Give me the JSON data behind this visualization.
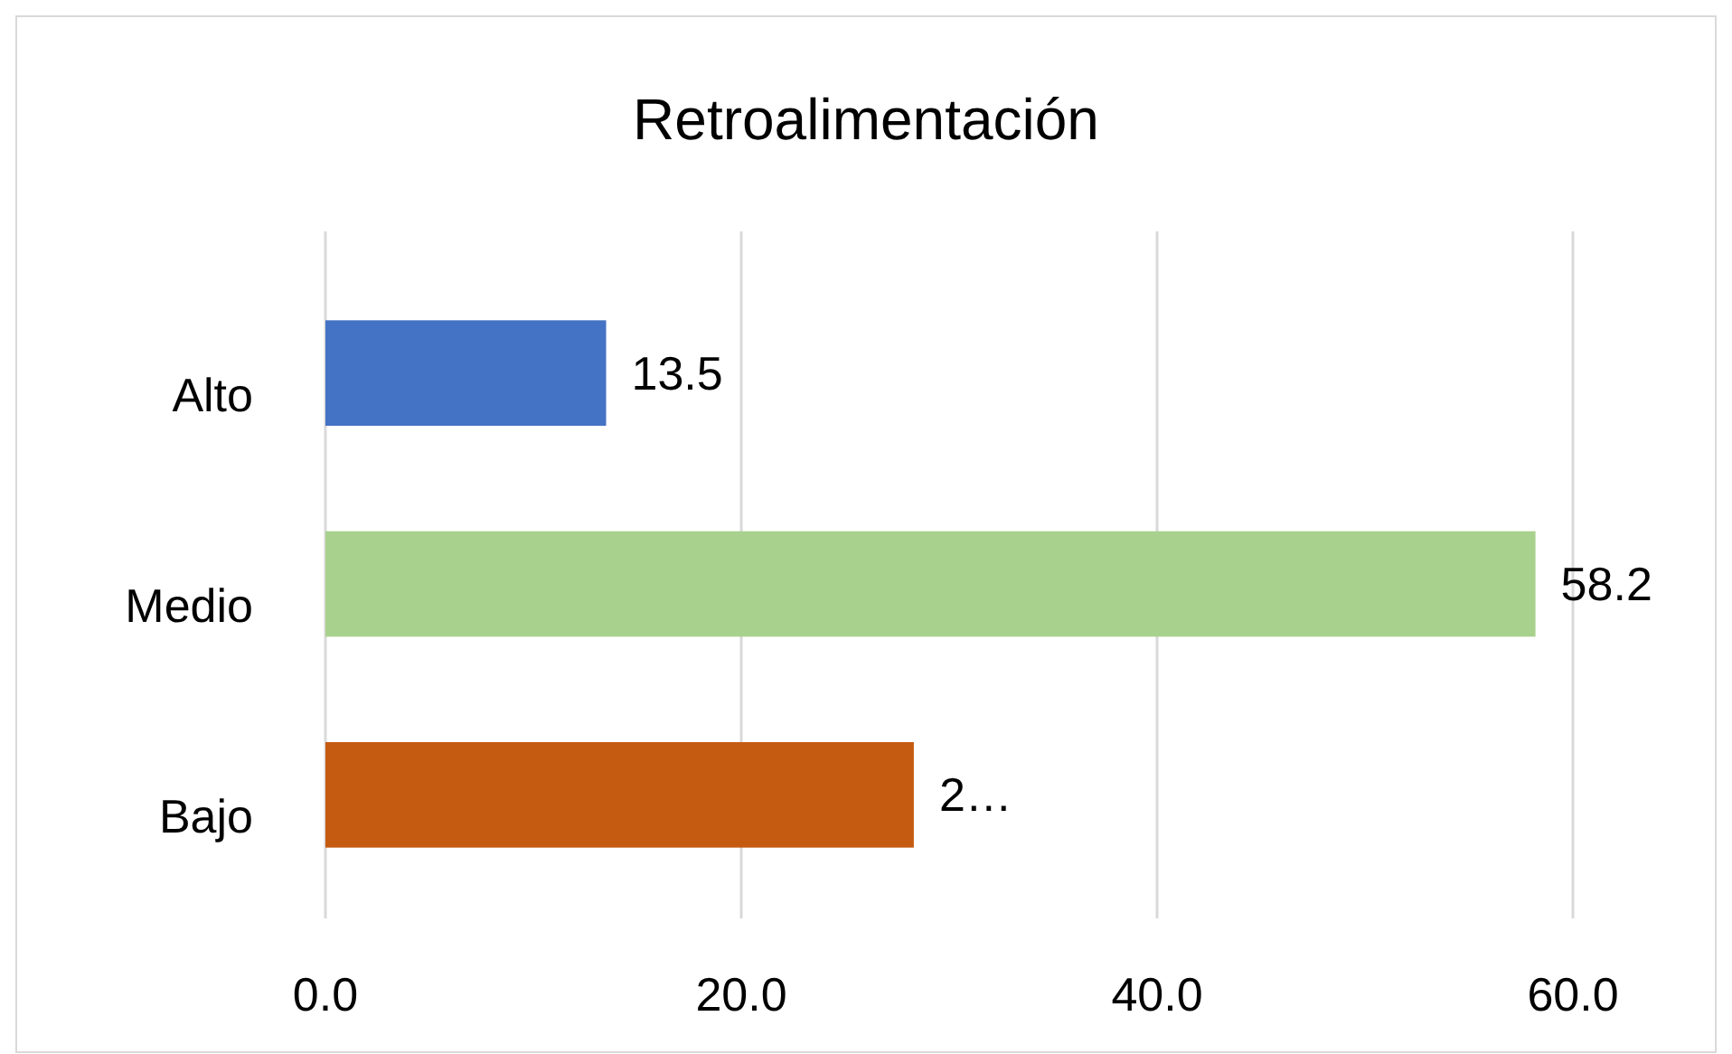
{
  "chart_data": {
    "type": "bar",
    "orientation": "horizontal",
    "title": "Retroalimentación",
    "categories": [
      "Alto",
      "Medio",
      "Bajo"
    ],
    "values": [
      13.5,
      58.2,
      28.3
    ],
    "colors": [
      "#4472c4",
      "#a9d18e",
      "#c55a11"
    ],
    "value_labels": [
      "13.5",
      "58.2",
      "2…"
    ],
    "xlim": [
      0,
      60
    ],
    "xticks": [
      {
        "value": 0,
        "label": "0.0"
      },
      {
        "value": 20,
        "label": "20.0"
      },
      {
        "value": 40,
        "label": "40.0"
      },
      {
        "value": 60,
        "label": "60.0"
      }
    ],
    "grid": "x"
  }
}
